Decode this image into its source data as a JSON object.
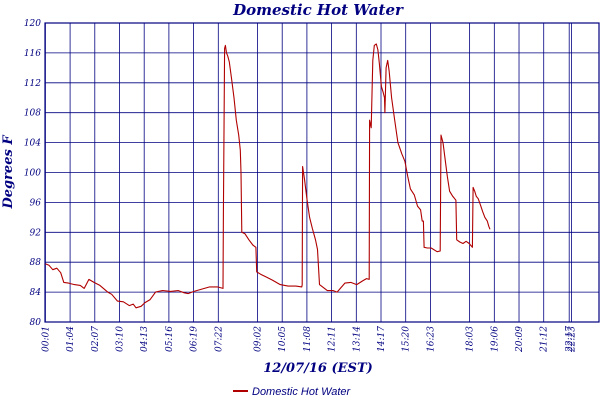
{
  "chart_data": {
    "type": "line",
    "title": "Domestic Hot Water",
    "xlabel": "12/07/16 (EST)",
    "ylabel": "Degrees F",
    "ylim": [
      80,
      120
    ],
    "y_ticks": [
      80,
      84,
      88,
      92,
      96,
      100,
      104,
      108,
      112,
      116,
      120
    ],
    "x_range": [
      0,
      1413
    ],
    "x_ticks": [
      {
        "label": "00:01",
        "t": 1
      },
      {
        "label": "01:04",
        "t": 64
      },
      {
        "label": "02:07",
        "t": 127
      },
      {
        "label": "03:10",
        "t": 190
      },
      {
        "label": "04:13",
        "t": 253
      },
      {
        "label": "05:16",
        "t": 316
      },
      {
        "label": "06:19",
        "t": 379
      },
      {
        "label": "07:22",
        "t": 442
      },
      {
        "label": "09:02",
        "t": 542
      },
      {
        "label": "10:05",
        "t": 605
      },
      {
        "label": "11:08",
        "t": 668
      },
      {
        "label": "12:11",
        "t": 731
      },
      {
        "label": "13:14",
        "t": 794
      },
      {
        "label": "14:17",
        "t": 857
      },
      {
        "label": "15:20",
        "t": 920
      },
      {
        "label": "16:23",
        "t": 983
      },
      {
        "label": "18:03",
        "t": 1083
      },
      {
        "label": "19:06",
        "t": 1146
      },
      {
        "label": "20:09",
        "t": 1209
      },
      {
        "label": "21:12",
        "t": 1272
      },
      {
        "label": "22:17",
        "t": 1337
      },
      {
        "label": "22:23",
        "t": 1343
      }
    ],
    "grid": true,
    "legend_position": "bottom-left",
    "series": [
      {
        "name": "Domestic Hot Water",
        "color": "#b00000",
        "points": [
          [
            1,
            87.8
          ],
          [
            10,
            87.6
          ],
          [
            20,
            87.0
          ],
          [
            30,
            87.2
          ],
          [
            40,
            86.6
          ],
          [
            48,
            85.3
          ],
          [
            60,
            85.2
          ],
          [
            75,
            85.0
          ],
          [
            90,
            84.9
          ],
          [
            100,
            84.5
          ],
          [
            112,
            85.7
          ],
          [
            125,
            85.3
          ],
          [
            140,
            84.9
          ],
          [
            160,
            84.0
          ],
          [
            170,
            83.7
          ],
          [
            185,
            82.8
          ],
          [
            200,
            82.7
          ],
          [
            215,
            82.2
          ],
          [
            225,
            82.4
          ],
          [
            232,
            81.9
          ],
          [
            245,
            82.1
          ],
          [
            255,
            82.6
          ],
          [
            268,
            83.0
          ],
          [
            282,
            84.0
          ],
          [
            300,
            84.2
          ],
          [
            320,
            84.1
          ],
          [
            340,
            84.2
          ],
          [
            355,
            83.9
          ],
          [
            365,
            83.8
          ],
          [
            380,
            84.1
          ],
          [
            400,
            84.4
          ],
          [
            420,
            84.7
          ],
          [
            440,
            84.7
          ],
          [
            454,
            84.5
          ],
          [
            455,
            94.5
          ],
          [
            458,
            116.6
          ],
          [
            460,
            117.0
          ],
          [
            463,
            116.0
          ],
          [
            466,
            115.6
          ],
          [
            470,
            114.8
          ],
          [
            476,
            112.5
          ],
          [
            482,
            110.0
          ],
          [
            488,
            107.0
          ],
          [
            494,
            105.0
          ],
          [
            498,
            103.0
          ],
          [
            500,
            100.0
          ],
          [
            502,
            92.0
          ],
          [
            510,
            91.8
          ],
          [
            520,
            91.0
          ],
          [
            530,
            90.3
          ],
          [
            538,
            90.0
          ],
          [
            540,
            86.7
          ],
          [
            550,
            86.4
          ],
          [
            565,
            86.0
          ],
          [
            580,
            85.6
          ],
          [
            600,
            85.0
          ],
          [
            620,
            84.8
          ],
          [
            640,
            84.8
          ],
          [
            655,
            84.7
          ],
          [
            656,
            85.0
          ],
          [
            657,
            100.8
          ],
          [
            662,
            99.0
          ],
          [
            668,
            96.5
          ],
          [
            675,
            94.0
          ],
          [
            682,
            92.5
          ],
          [
            690,
            91.0
          ],
          [
            695,
            89.7
          ],
          [
            700,
            85.0
          ],
          [
            710,
            84.6
          ],
          [
            720,
            84.2
          ],
          [
            735,
            84.2
          ],
          [
            745,
            84.0
          ],
          [
            755,
            84.6
          ],
          [
            765,
            85.2
          ],
          [
            780,
            85.3
          ],
          [
            795,
            85.0
          ],
          [
            810,
            85.5
          ],
          [
            820,
            85.8
          ],
          [
            827,
            85.7
          ],
          [
            828,
            107.0
          ],
          [
            832,
            106.0
          ],
          [
            836,
            115.0
          ],
          [
            840,
            117.0
          ],
          [
            845,
            117.2
          ],
          [
            849,
            116.4
          ],
          [
            853,
            114.5
          ],
          [
            858,
            111.5
          ],
          [
            862,
            110.8
          ],
          [
            866,
            110.0
          ],
          [
            867,
            108.0
          ],
          [
            870,
            114.0
          ],
          [
            874,
            115.0
          ],
          [
            878,
            113.5
          ],
          [
            884,
            110.0
          ],
          [
            892,
            107.0
          ],
          [
            900,
            104.0
          ],
          [
            910,
            102.5
          ],
          [
            918,
            101.5
          ],
          [
            925,
            99.5
          ],
          [
            932,
            97.8
          ],
          [
            942,
            97.0
          ],
          [
            950,
            95.5
          ],
          [
            958,
            95.0
          ],
          [
            962,
            93.5
          ],
          [
            965,
            93.5
          ],
          [
            967,
            90.0
          ],
          [
            975,
            89.9
          ],
          [
            985,
            89.9
          ],
          [
            1000,
            89.4
          ],
          [
            1008,
            89.5
          ],
          [
            1010,
            105.0
          ],
          [
            1015,
            104.0
          ],
          [
            1020,
            102.0
          ],
          [
            1026,
            99.5
          ],
          [
            1032,
            97.5
          ],
          [
            1040,
            96.8
          ],
          [
            1048,
            96.3
          ],
          [
            1050,
            91.0
          ],
          [
            1058,
            90.7
          ],
          [
            1066,
            90.5
          ],
          [
            1074,
            90.8
          ],
          [
            1082,
            90.5
          ],
          [
            1090,
            90.0
          ],
          [
            1092,
            98.0
          ],
          [
            1096,
            97.5
          ],
          [
            1100,
            96.8
          ],
          [
            1105,
            96.5
          ],
          [
            1111,
            95.6
          ],
          [
            1116,
            94.8
          ],
          [
            1122,
            94.0
          ],
          [
            1128,
            93.5
          ],
          [
            1132,
            92.8
          ],
          [
            1135,
            92.4
          ]
        ]
      }
    ]
  }
}
